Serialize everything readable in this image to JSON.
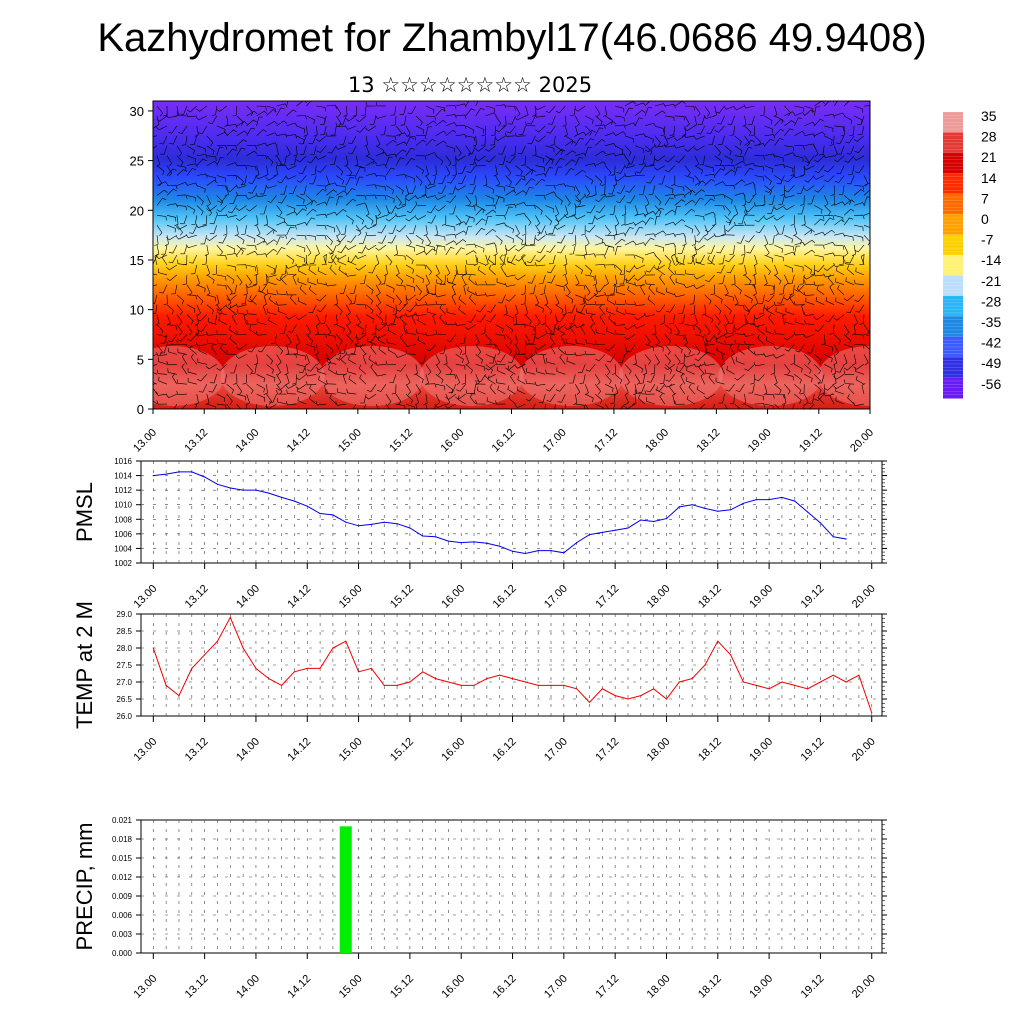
{
  "header": {
    "title": "Kazhydromet for Zhambyl17(46.0686 49.9408)",
    "subtitle": "13 ☆☆☆☆☆☆☆☆ 2025"
  },
  "time_labels": [
    "13.00",
    "13.12",
    "14.00",
    "14.12",
    "15.00",
    "15.12",
    "16.00",
    "16.12",
    "17.00",
    "17.12",
    "18.00",
    "18.12",
    "19.00",
    "19.12",
    "20.00"
  ],
  "chart_data": [
    {
      "id": "upper-air",
      "type": "heatmap",
      "y_ticks": [
        0,
        5,
        10,
        15,
        20,
        25,
        30
      ],
      "ylim": [
        0,
        31
      ],
      "xlim": [
        0,
        14
      ],
      "colorbar": {
        "labels": [
          "35",
          "28",
          "21",
          "14",
          "7",
          "0",
          "-7",
          "-14",
          "-21",
          "-28",
          "-35",
          "-42",
          "-49",
          "-56"
        ],
        "colors": [
          "#ef9a9a",
          "#e53935",
          "#d50000",
          "#ff2a00",
          "#ff6a00",
          "#ffa000",
          "#ffd000",
          "#fff176",
          "#bbdefb",
          "#29b6f6",
          "#1e88e5",
          "#3d5afe",
          "#2f2fe8",
          "#6a1bf5"
        ]
      }
    },
    {
      "id": "pmsl",
      "type": "line",
      "ylabel": "PMSL",
      "y_ticks": [
        1002,
        1004,
        1006,
        1008,
        1010,
        1012,
        1014,
        1016
      ],
      "ylim": [
        1002,
        1016
      ],
      "xlim": [
        -0.24,
        14.2
      ],
      "color": "#0000ee",
      "x": [
        0,
        0.25,
        0.5,
        0.75,
        1,
        1.25,
        1.5,
        1.75,
        2,
        2.25,
        2.5,
        2.75,
        3,
        3.25,
        3.5,
        3.75,
        4,
        4.25,
        4.5,
        4.75,
        5,
        5.25,
        5.5,
        5.75,
        6,
        6.25,
        6.5,
        6.75,
        7,
        7.25,
        7.5,
        7.75,
        8,
        8.25,
        8.5,
        8.75,
        9,
        9.25,
        9.5,
        9.75,
        10,
        10.25,
        10.5,
        10.75,
        11,
        11.25,
        11.5,
        11.75,
        12,
        12.25,
        12.5,
        12.75,
        13,
        13.25,
        13.5
      ],
      "values": [
        1014,
        1014.2,
        1014.5,
        1014.5,
        1013.8,
        1012.8,
        1012.3,
        1012,
        1012,
        1011.6,
        1011,
        1010.5,
        1009.8,
        1008.8,
        1008.6,
        1007.6,
        1007.1,
        1007.3,
        1007.6,
        1007.4,
        1006.8,
        1005.7,
        1005.6,
        1005,
        1004.8,
        1004.9,
        1004.7,
        1004.3,
        1003.6,
        1003.3,
        1003.7,
        1003.7,
        1003.4,
        1004.8,
        1005.9,
        1006.2,
        1006.5,
        1006.8,
        1007.9,
        1007.7,
        1008.1,
        1009.7,
        1010,
        1009.5,
        1009.1,
        1009.3,
        1010.2,
        1010.7,
        1010.7,
        1011,
        1010.5,
        1009,
        1007.5,
        1005.6,
        1005.3
      ]
    },
    {
      "id": "temp",
      "type": "line",
      "ylabel": "TEMP at 2 M",
      "y_ticks": [
        "26.0",
        "26.5",
        "27.0",
        "27.5",
        "28.0",
        "28.5",
        "29.0"
      ],
      "ylim": [
        26,
        29
      ],
      "xlim": [
        -0.24,
        14.2
      ],
      "color": "#ee0000",
      "x": [
        0,
        0.25,
        0.5,
        0.75,
        1,
        1.25,
        1.5,
        1.75,
        2,
        2.25,
        2.5,
        2.75,
        3,
        3.25,
        3.5,
        3.75,
        4,
        4.25,
        4.5,
        4.75,
        5,
        5.25,
        5.5,
        5.75,
        6,
        6.25,
        6.5,
        6.75,
        7,
        7.25,
        7.5,
        7.75,
        8,
        8.25,
        8.5,
        8.75,
        9,
        9.25,
        9.5,
        9.75,
        10,
        10.25,
        10.5,
        10.75,
        11,
        11.25,
        11.5,
        11.75,
        12,
        12.25,
        12.5,
        12.75,
        13,
        13.25,
        13.5,
        13.75,
        14
      ],
      "values": [
        28,
        26.9,
        26.6,
        27.4,
        27.8,
        28.2,
        28.9,
        28,
        27.4,
        27.1,
        26.9,
        27.3,
        27.4,
        27.4,
        28,
        28.2,
        27.3,
        27.4,
        26.9,
        26.9,
        27,
        27.3,
        27.1,
        27,
        26.9,
        26.9,
        27.1,
        27.2,
        27.1,
        27,
        26.9,
        26.9,
        26.9,
        26.8,
        26.4,
        26.8,
        26.6,
        26.5,
        26.6,
        26.8,
        26.5,
        27,
        27.1,
        27.5,
        28.2,
        27.8,
        27,
        26.9,
        26.8,
        27,
        26.9,
        26.8,
        27,
        27.2,
        27,
        27.2,
        26.1
      ]
    },
    {
      "id": "precip",
      "type": "bar",
      "ylabel": "PRECIP, mm",
      "y_ticks": [
        "0.000",
        "0.003",
        "0.006",
        "0.009",
        "0.012",
        "0.015",
        "0.018",
        "0.021"
      ],
      "ylim": [
        0,
        0.021
      ],
      "xlim": [
        -0.24,
        14.2
      ],
      "color": "#00ee00",
      "bars": [
        {
          "x": 3.75,
          "value": 0.02
        }
      ]
    }
  ]
}
